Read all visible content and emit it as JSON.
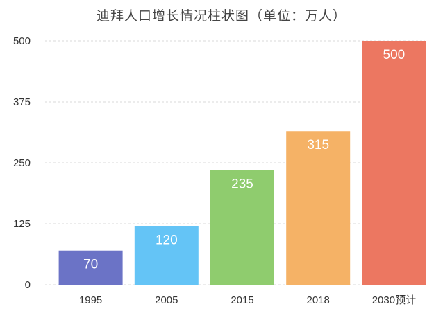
{
  "chart_data": {
    "type": "bar",
    "title": "迪拜人口增长情况柱状图（单位：万人）",
    "categories": [
      "1995",
      "2005",
      "2015",
      "2018",
      "2030预计"
    ],
    "values": [
      70,
      120,
      235,
      315,
      500
    ],
    "data_labels": [
      "70",
      "120",
      "235",
      "315",
      "500"
    ],
    "colors": [
      "#6b73c6",
      "#64c4f6",
      "#8fcc6e",
      "#f5b266",
      "#ec7761"
    ],
    "y_ticks": [
      0,
      125,
      250,
      375,
      500
    ],
    "ylim": [
      0,
      500
    ],
    "xlabel": "",
    "ylabel": "",
    "grid": true,
    "legend": "none"
  }
}
